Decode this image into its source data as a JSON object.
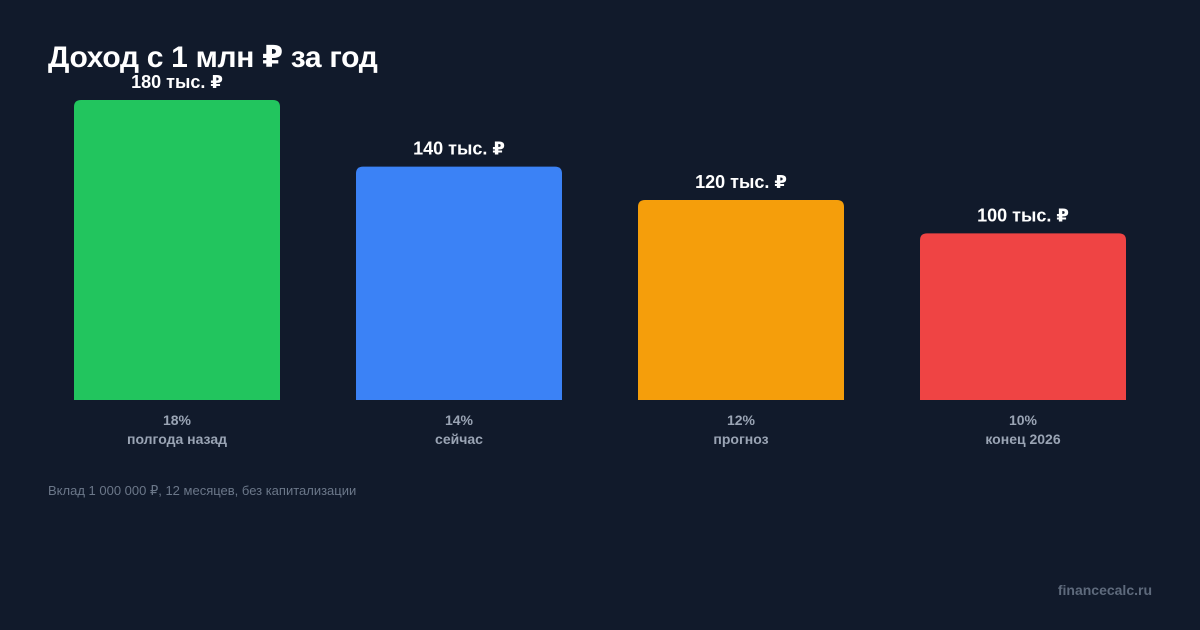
{
  "title": "Доход с 1 млн ₽ за год",
  "note": "Вклад 1 000 000 ₽, 12 месяцев, без капитализации",
  "brand": "financecalc.ru",
  "chart_data": {
    "type": "bar",
    "title": "Доход с 1 млн ₽ за год",
    "unit": "тыс. ₽",
    "categories": [
      "полгода назад",
      "сейчас",
      "прогноз",
      "конец 2026"
    ],
    "rates": [
      "18%",
      "14%",
      "12%",
      "10%"
    ],
    "values": [
      180,
      140,
      120,
      100
    ],
    "value_labels": [
      "180 тыс. ₽",
      "140 тыс. ₽",
      "120 тыс. ₽",
      "100 тыс. ₽"
    ],
    "colors": [
      "#22c55e",
      "#3b82f6",
      "#f59e0b",
      "#ef4444"
    ],
    "ylim": [
      0,
      180
    ],
    "grid": false
  }
}
